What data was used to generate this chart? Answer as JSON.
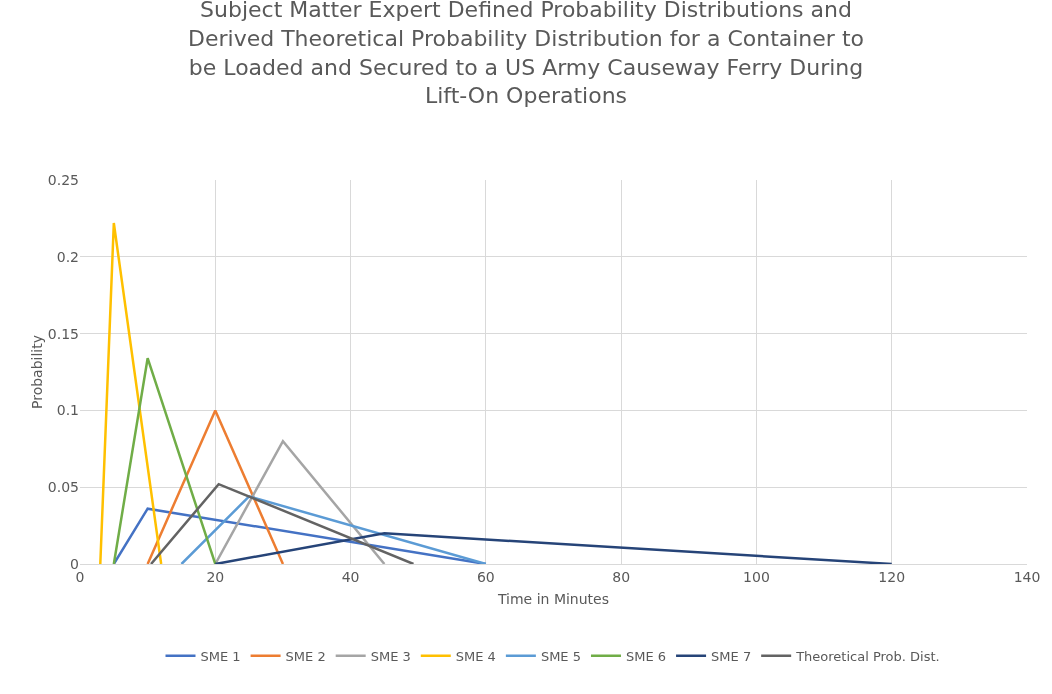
{
  "chart_data": {
    "type": "line",
    "title": "Subject Matter Expert Defined Probability Distributions and Derived Theoretical Probability Distribution for a Container to be Loaded and Secured to a US Army Causeway Ferry During Lift-On Operations",
    "xlabel": "Time in Minutes",
    "ylabel": "Probability",
    "series": [
      {
        "name": "SME 1",
        "color": "#4472c4",
        "x": [
          5,
          10,
          60
        ],
        "values": [
          0,
          0.036,
          0
        ]
      },
      {
        "name": "SME 2",
        "color": "#ed7d31",
        "x": [
          10,
          20,
          30
        ],
        "values": [
          0,
          0.1,
          0
        ]
      },
      {
        "name": "SME 3",
        "color": "#a5a5a5",
        "x": [
          20,
          30,
          45
        ],
        "values": [
          0,
          0.08,
          0
        ]
      },
      {
        "name": "SME 4",
        "color": "#ffc000",
        "x": [
          3,
          5,
          12
        ],
        "values": [
          0,
          0.222,
          0
        ]
      },
      {
        "name": "SME 5",
        "color": "#5b9bd5",
        "x": [
          15,
          25,
          60
        ],
        "values": [
          0,
          0.044,
          0
        ]
      },
      {
        "name": "SME 6",
        "color": "#70ad47",
        "x": [
          5,
          10,
          20
        ],
        "values": [
          0,
          0.134,
          0
        ]
      },
      {
        "name": "SME 7",
        "color": "#264478",
        "x": [
          20,
          45,
          120
        ],
        "values": [
          0,
          0.02,
          0
        ]
      },
      {
        "name": "Theoretical Prob. Dist.",
        "color": "#636363",
        "x": [
          10.5,
          20.5,
          49.3
        ],
        "values": [
          0,
          0.052,
          0
        ]
      }
    ],
    "xlim": [
      0,
      140
    ],
    "xticks": [
      0,
      20,
      40,
      60,
      80,
      100,
      120,
      140
    ],
    "ylim": [
      0,
      0.25
    ],
    "yticks": [
      0,
      0.05,
      0.1,
      0.15,
      0.2,
      0.25
    ],
    "grid": true,
    "legend": "bottom",
    "marker": "none",
    "line_style": "solid"
  }
}
